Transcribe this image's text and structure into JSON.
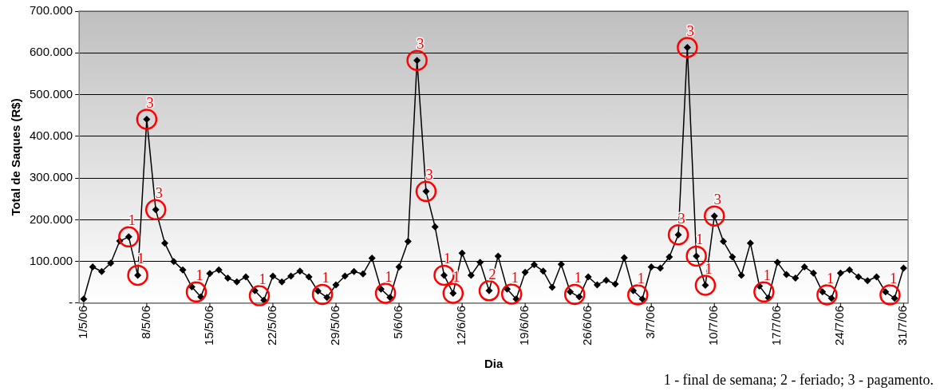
{
  "chart_data": {
    "type": "line",
    "xlabel": "Dia",
    "ylabel": "Total de Saques (R$)",
    "color": "#000000",
    "marker": "diamond",
    "grid": "y",
    "x": [
      "--05-01",
      "--05-02",
      "--05-03",
      "--05-04",
      "--05-05",
      "--05-06",
      "--05-07",
      "--05-08",
      "--05-09",
      "--05-10",
      "--05-11",
      "--05-12",
      "--05-13",
      "--05-14",
      "--05-15",
      "--05-16",
      "--05-17",
      "--05-18",
      "--05-19",
      "--05-20",
      "--05-21",
      "--05-22",
      "--05-23",
      "--05-24",
      "--05-25",
      "--05-26",
      "--05-27",
      "--05-28",
      "--05-29",
      "--05-30",
      "--05-31",
      "--06-01",
      "--06-02",
      "--06-03",
      "--06-04",
      "--06-05",
      "--06-06",
      "--06-07",
      "--06-08",
      "--06-09",
      "--06-10",
      "--06-11",
      "--06-12",
      "--06-13",
      "--06-14",
      "--06-15",
      "--06-16",
      "--06-17",
      "--06-18",
      "--06-19",
      "--06-20",
      "--06-21",
      "--06-22",
      "--06-23",
      "--06-24",
      "--06-25",
      "--06-26",
      "--06-27",
      "--06-28",
      "--06-29",
      "--06-30",
      "--07-01",
      "--07-02",
      "--07-03",
      "--07-04",
      "--07-05",
      "--07-06",
      "--07-07",
      "--07-08",
      "--07-09",
      "--07-10",
      "--07-11",
      "--07-12",
      "--07-13",
      "--07-14",
      "--07-15",
      "--07-16",
      "--07-17",
      "--07-18",
      "--07-19",
      "--07-20",
      "--07-21",
      "--07-22",
      "--07-23",
      "--07-24",
      "--07-25",
      "--07-26",
      "--07-27",
      "--07-28",
      "--07-29",
      "--07-30",
      "--07-31"
    ],
    "values": [
      10000,
      87000,
      76000,
      96000,
      149000,
      159000,
      67000,
      441000,
      224000,
      144000,
      100000,
      80000,
      39000,
      15000,
      71000,
      80000,
      60000,
      51000,
      63000,
      30000,
      7000,
      65000,
      51000,
      65000,
      77000,
      63000,
      29000,
      14000,
      44000,
      65000,
      76000,
      70000,
      108000,
      34000,
      14000,
      87000,
      148000,
      582000,
      268000,
      183000,
      67000,
      24000,
      120000,
      67000,
      98000,
      30000,
      113000,
      34000,
      10000,
      74000,
      92000,
      77000,
      38000,
      93000,
      27000,
      15000,
      63000,
      44000,
      55000,
      46000,
      109000,
      30000,
      10000,
      87000,
      84000,
      111000,
      164000,
      613000,
      113000,
      43000,
      209000,
      148000,
      111000,
      67000,
      144000,
      41000,
      13000,
      98000,
      69000,
      60000,
      87000,
      72000,
      27000,
      12000,
      72000,
      80000,
      63000,
      54000,
      63000,
      27000,
      12000,
      84000
    ],
    "xlim": [
      "--04-30T12:00",
      "--07-31T12:00"
    ],
    "xticks": [
      {
        "value": "--05-01",
        "label": "1/5/06"
      },
      {
        "value": "--05-08",
        "label": "8/5/06"
      },
      {
        "value": "--05-15",
        "label": "15/5/06"
      },
      {
        "value": "--05-22",
        "label": "22/5/06"
      },
      {
        "value": "--05-29",
        "label": "29/5/06"
      },
      {
        "value": "--06-05",
        "label": "5/6/06"
      },
      {
        "value": "--06-12",
        "label": "12/6/06"
      },
      {
        "value": "--06-19",
        "label": "19/6/06"
      },
      {
        "value": "--06-26",
        "label": "26/6/06"
      },
      {
        "value": "--07-03",
        "label": "3/7/06"
      },
      {
        "value": "--07-10",
        "label": "10/7/06"
      },
      {
        "value": "--07-17",
        "label": "17/7/06"
      },
      {
        "value": "--07-24",
        "label": "24/7/06"
      },
      {
        "value": "--07-31",
        "label": "31/7/06"
      }
    ],
    "ylim": [
      0,
      700000
    ],
    "yticks": [
      {
        "value": 0,
        "label": "-"
      },
      {
        "value": 100000,
        "label": "100.000"
      },
      {
        "value": 200000,
        "label": "200.000"
      },
      {
        "value": 300000,
        "label": "300.000"
      },
      {
        "value": 400000,
        "label": "400.000"
      },
      {
        "value": 500000,
        "label": "500.000"
      },
      {
        "value": 600000,
        "label": "600.000"
      },
      {
        "value": 700000,
        "label": "700.000"
      }
    ],
    "annotations": [
      {
        "text": "1",
        "x": "--05-06",
        "y": 159000
      },
      {
        "text": "1",
        "x": "--05-07",
        "y": 67000
      },
      {
        "text": "3",
        "x": "--05-08",
        "y": 441000
      },
      {
        "text": "3",
        "x": "--05-09",
        "y": 224000
      },
      {
        "text": "1",
        "x": "--05-13T12:00",
        "y": 27000
      },
      {
        "text": "1",
        "x": "--05-20T12:00",
        "y": 18000
      },
      {
        "text": "1",
        "x": "--05-27T12:00",
        "y": 21000
      },
      {
        "text": "1",
        "x": "--06-03T12:00",
        "y": 24000
      },
      {
        "text": "3",
        "x": "--06-07",
        "y": 582000
      },
      {
        "text": "3",
        "x": "--06-08",
        "y": 268000
      },
      {
        "text": "1",
        "x": "--06-10",
        "y": 67000
      },
      {
        "text": "1",
        "x": "--06-11",
        "y": 24000
      },
      {
        "text": "2",
        "x": "--06-15",
        "y": 30000
      },
      {
        "text": "1",
        "x": "--06-17T12:00",
        "y": 22000
      },
      {
        "text": "1",
        "x": "--06-24T12:00",
        "y": 21000
      },
      {
        "text": "1",
        "x": "--07-01T12:00",
        "y": 20000
      },
      {
        "text": "3",
        "x": "--07-06",
        "y": 164000
      },
      {
        "text": "3",
        "x": "--07-07",
        "y": 613000
      },
      {
        "text": "1",
        "x": "--07-08",
        "y": 113000
      },
      {
        "text": "1",
        "x": "--07-09",
        "y": 43000
      },
      {
        "text": "3",
        "x": "--07-10",
        "y": 209000
      },
      {
        "text": "1",
        "x": "--07-15T12:00",
        "y": 27000
      },
      {
        "text": "1",
        "x": "--07-22T12:00",
        "y": 20000
      },
      {
        "text": "1",
        "x": "--07-29T12:00",
        "y": 20000
      },
      "1 - final de semana; 2 - feriado; 3 - pagamento."
    ]
  }
}
